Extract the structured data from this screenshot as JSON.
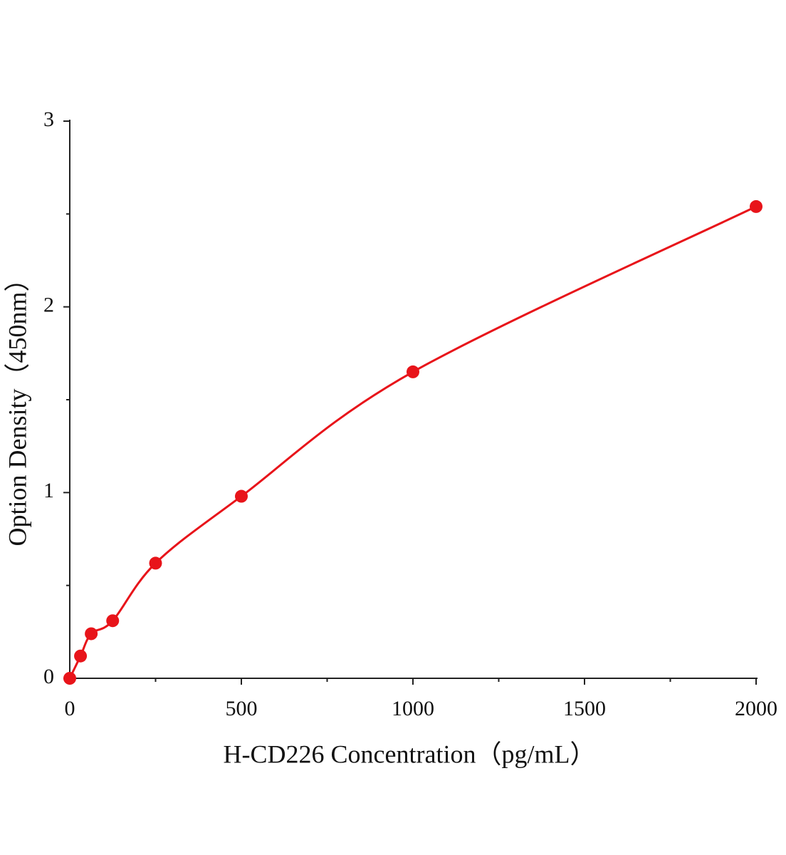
{
  "chart_data": {
    "type": "line",
    "markers": true,
    "smooth": true,
    "x_label": "H-CD226 Concentration（pg/mL）",
    "y_label": "Option Density（450nm）",
    "x": [
      0,
      31.25,
      62.5,
      125,
      250,
      500,
      1000,
      2000
    ],
    "series": [
      {
        "color": "#e8141a",
        "values": [
          0,
          0.12,
          0.24,
          0.31,
          0.62,
          0.98,
          1.65,
          2.54
        ]
      }
    ],
    "xlim": [
      0,
      2000
    ],
    "ylim": [
      0,
      3
    ],
    "xticks": [
      0,
      500,
      1000,
      1500,
      2000
    ],
    "xminorticks": [
      250,
      750,
      1250,
      1750
    ],
    "yticks": [
      0,
      1,
      2,
      3
    ],
    "yminorticks": [
      0.5,
      1.5,
      2.5
    ],
    "grid": false
  }
}
